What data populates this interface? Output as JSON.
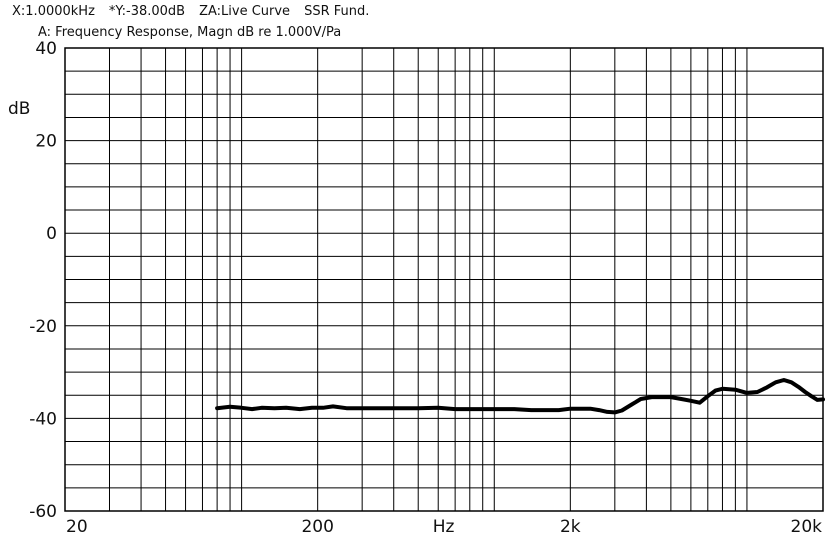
{
  "header": {
    "status_x": "X:1.0000kHz",
    "status_y": "*Y:-38.00dB",
    "status_za": "ZA:Live Curve",
    "status_mode": "SSR Fund.",
    "subtitle": "A: Frequency Response, Magn dB re 1.000V/Pa"
  },
  "chart_data": {
    "type": "line",
    "title": "A: Frequency Response, Magn dB re 1.000V/Pa",
    "xlabel": "Hz",
    "ylabel": "dB",
    "xscale": "log",
    "xlim": [
      20,
      20000
    ],
    "ylim": [
      -60,
      40
    ],
    "x_tick_labels": [
      {
        "value": 20,
        "label": "20"
      },
      {
        "value": 200,
        "label": "200"
      },
      {
        "value": 2000,
        "label": "2k"
      },
      {
        "value": 20000,
        "label": "20k"
      }
    ],
    "y_tick_labels": [
      {
        "value": 40,
        "label": "40"
      },
      {
        "value": 20,
        "label": "20"
      },
      {
        "value": 0,
        "label": "0"
      },
      {
        "value": -20,
        "label": "-20"
      },
      {
        "value": -40,
        "label": "-40"
      },
      {
        "value": -60,
        "label": "-60"
      }
    ],
    "y_grid_step": 5,
    "grid": true,
    "series": [
      {
        "color": "#000000",
        "x": [
          80,
          90,
          100,
          110,
          120,
          135,
          150,
          170,
          190,
          210,
          230,
          260,
          300,
          350,
          400,
          450,
          500,
          600,
          700,
          800,
          1000,
          1200,
          1400,
          1600,
          1800,
          2000,
          2200,
          2400,
          2600,
          2800,
          3000,
          3200,
          3500,
          3800,
          4200,
          4600,
          5000,
          5500,
          6000,
          6500,
          7000,
          7500,
          8000,
          9000,
          10000,
          11000,
          12000,
          13000,
          14000,
          15000,
          16000,
          17000,
          18000,
          19000,
          20000
        ],
        "y": [
          -37.8,
          -37.5,
          -37.7,
          -38.0,
          -37.7,
          -37.8,
          -37.7,
          -38.0,
          -37.7,
          -37.7,
          -37.4,
          -37.8,
          -37.8,
          -37.8,
          -37.8,
          -37.8,
          -37.8,
          -37.7,
          -38.0,
          -38.0,
          -38.0,
          -38.0,
          -38.2,
          -38.2,
          -38.2,
          -37.9,
          -37.9,
          -37.9,
          -38.2,
          -38.6,
          -38.7,
          -38.3,
          -37.0,
          -35.8,
          -35.4,
          -35.4,
          -35.4,
          -35.8,
          -36.2,
          -36.6,
          -35.2,
          -34.0,
          -33.6,
          -33.8,
          -34.5,
          -34.3,
          -33.3,
          -32.2,
          -31.7,
          -32.2,
          -33.2,
          -34.3,
          -35.2,
          -36.0,
          -35.9
        ]
      }
    ]
  }
}
